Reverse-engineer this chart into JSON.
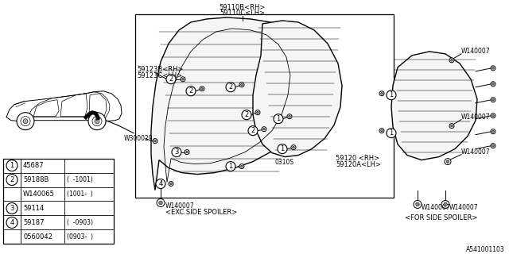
{
  "background_color": "#ffffff",
  "line_color": "#000000",
  "text_color": "#000000",
  "labels": {
    "top_center": [
      "59110B<RH>",
      "59110C<LH>"
    ],
    "upper_left": [
      "59123B<RH>",
      "59123C<LH>"
    ],
    "w300029": "W300029",
    "bottom_label_exc": "<EXC.SIDE SPOILER>",
    "bottom_label_for": "<FOR SIDE SPOILER>",
    "right_label1": [
      "59120 <RH>",
      "59120A<LH>"
    ],
    "w140007": "W140007",
    "diagram_ref": "A541001103",
    "part_0310s": "0310S",
    "rh_lh_main": [
      "59120 <RH>",
      "59120A<LH>"
    ]
  },
  "table_rows": [
    [
      1,
      "45687",
      ""
    ],
    [
      2,
      "59188B",
      "(  -1001)"
    ],
    [
      null,
      "W140065",
      "(1001-  )"
    ],
    [
      3,
      "59114",
      ""
    ],
    [
      4,
      "59187",
      "(  -0903)"
    ],
    [
      null,
      "0560042",
      "(0903-  )"
    ]
  ]
}
